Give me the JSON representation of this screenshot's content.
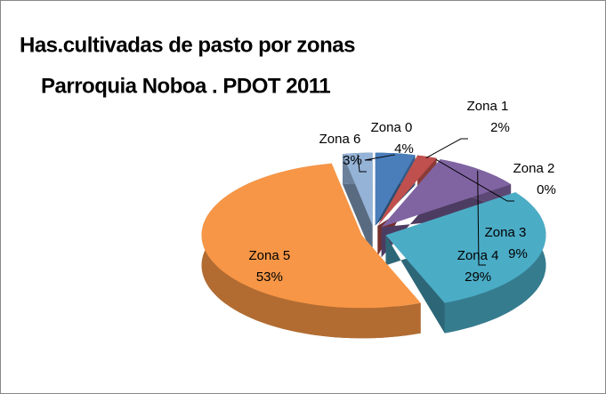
{
  "chart_data": {
    "type": "pie",
    "title": [
      "Has.cultivadas de pasto por zonas",
      "Parroquia Noboa . PDOT 2011"
    ],
    "categories": [
      "Zona 0",
      "Zona 1",
      "Zona 2",
      "Zona 3",
      "Zona 4",
      "Zona 5",
      "Zona 6"
    ],
    "values": [
      4,
      2,
      0,
      9,
      29,
      53,
      3
    ],
    "value_labels": [
      "4%",
      "2%",
      "0%",
      "9%",
      "29%",
      "53%",
      "3%"
    ],
    "colors": [
      "#4a7ebb",
      "#c0504d",
      "#9bbb59",
      "#8064a2",
      "#4bacc6",
      "#f79646",
      "#95b3d7"
    ]
  }
}
